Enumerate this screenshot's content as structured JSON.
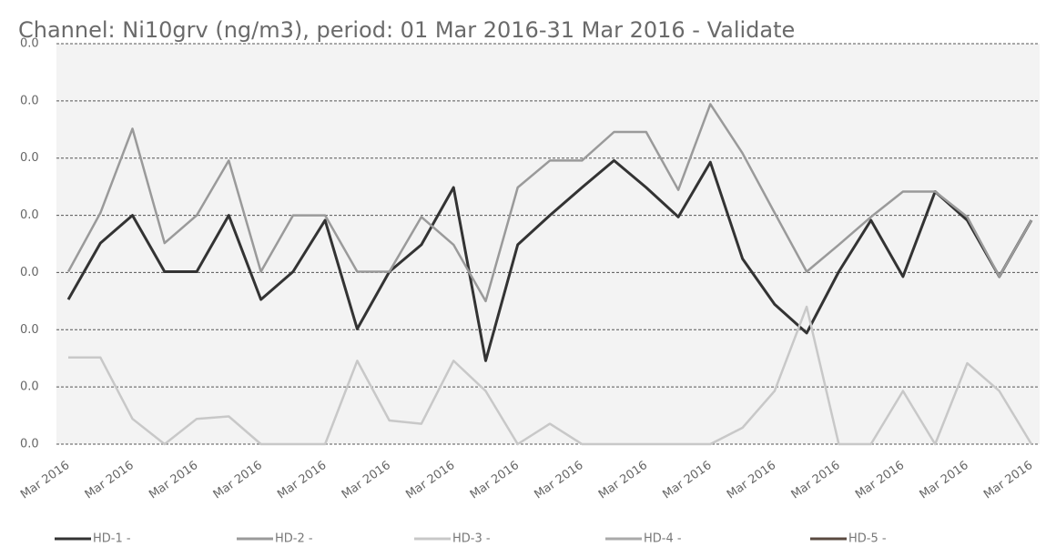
{
  "chart_data": {
    "type": "line",
    "title": "Channel: Ni10grv (ng/m3), period: 01 Mar 2016-31 Mar 2016 - Validate",
    "categories": [
      "Mar 2016",
      null,
      "Mar 2016",
      null,
      "Mar 2016",
      null,
      "Mar 2016",
      null,
      "Mar 2016",
      null,
      "Mar 2016",
      null,
      "Mar 2016",
      null,
      "Mar 2016",
      null,
      "Mar 2016",
      null,
      "Mar 2016",
      null,
      "Mar 2016",
      null,
      "Mar 2016",
      null,
      "Mar 2016",
      null,
      "Mar 2016",
      null,
      "Mar 2016",
      null,
      "Mar 2016"
    ],
    "ylim": [
      0,
      0.049
    ],
    "yticks": [
      {
        "value": 0,
        "label": "0.0"
      },
      {
        "value": 0.007,
        "label": "0.0"
      },
      {
        "value": 0.014,
        "label": "0.0"
      },
      {
        "value": 0.021,
        "label": "0.0"
      },
      {
        "value": 0.028,
        "label": "0.0"
      },
      {
        "value": 0.035,
        "label": "0.0"
      },
      {
        "value": 0.042,
        "label": "0.0"
      },
      {
        "value": 0.049,
        "label": "0.0"
      }
    ],
    "grid": true,
    "legend": "bottom",
    "series": [
      {
        "name": "HD-1 -",
        "color": "#333333",
        "values": [
          0.0177,
          0.0246,
          0.028,
          0.0211,
          0.0211,
          0.028,
          0.0177,
          0.0211,
          0.0274,
          0.0141,
          0.0211,
          0.0244,
          0.0314,
          0.0102,
          0.0244,
          0.028,
          0.0314,
          0.0347,
          0.0314,
          0.0278,
          0.0345,
          0.0227,
          0.0171,
          0.0136,
          0.0211,
          0.0274,
          0.0205,
          0.0309,
          0.0274,
          0.0205,
          0.0274
        ]
      },
      {
        "name": "HD-2 -",
        "color": "#9a9a9a",
        "values": [
          0.0211,
          0.0283,
          0.0386,
          0.0246,
          0.028,
          0.0347,
          0.0211,
          0.028,
          0.028,
          0.0211,
          0.0211,
          0.0278,
          0.0244,
          0.0175,
          0.0314,
          0.0347,
          0.0347,
          0.0382,
          0.0382,
          0.0311,
          0.0416,
          0.0356,
          0.0283,
          0.0211,
          0.0244,
          0.0278,
          0.0309,
          0.0309,
          0.0278,
          0.0205,
          0.0274
        ]
      },
      {
        "name": "HD-3 -",
        "color": "#c8c8c8",
        "values": [
          0.0106,
          0.0106,
          0.0031,
          0,
          0.0031,
          0.0034,
          0,
          0,
          0,
          0.0102,
          0.0029,
          0.0025,
          0.0102,
          0.0065,
          0,
          0.0025,
          0,
          0,
          0,
          0,
          0,
          0.002,
          0.0065,
          0.0168,
          0,
          0,
          0.0065,
          0,
          0.0099,
          0.0065,
          0
        ]
      },
      {
        "name": "HD-4 -",
        "color": "#aaaaaa",
        "values": [
          null,
          null,
          null,
          null,
          null,
          null,
          null,
          null,
          null,
          null,
          null,
          null,
          null,
          null,
          null,
          null,
          null,
          null,
          null,
          null,
          null,
          null,
          null,
          null,
          null,
          null,
          null,
          null,
          null,
          null,
          null
        ]
      },
      {
        "name": "HD-5 -",
        "color": "#5a4a40",
        "values": [
          null,
          null,
          null,
          null,
          null,
          null,
          null,
          null,
          null,
          null,
          null,
          null,
          null,
          null,
          null,
          null,
          null,
          null,
          null,
          null,
          null,
          null,
          null,
          null,
          null,
          null,
          null,
          null,
          null,
          null,
          null
        ]
      }
    ]
  }
}
